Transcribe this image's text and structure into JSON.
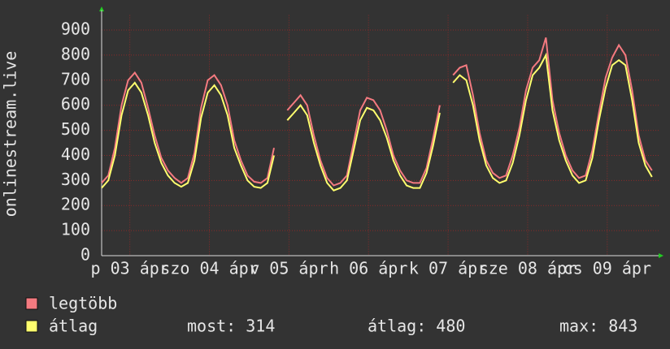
{
  "chart_data": {
    "type": "line",
    "ylabel": "onlinestream.live",
    "x": [
      0,
      2,
      4,
      6,
      8,
      10,
      12,
      14,
      16,
      18,
      20,
      22,
      24,
      26,
      28,
      30,
      32,
      34,
      36,
      38,
      40,
      42,
      44,
      46,
      48,
      50,
      52,
      54,
      56,
      58,
      60,
      62,
      64,
      66,
      68,
      70,
      72,
      74,
      76,
      78,
      80,
      82,
      84,
      86,
      88,
      90,
      92,
      94,
      96,
      98,
      100,
      102,
      104,
      106,
      108,
      110,
      112,
      114,
      116,
      118,
      120,
      122,
      124,
      126,
      128,
      130,
      132,
      134,
      136,
      138,
      140,
      142,
      144,
      146,
      148,
      150,
      152,
      154,
      156,
      158,
      160,
      162,
      164,
      166
    ],
    "xlim": [
      0,
      168
    ],
    "xticks": [
      {
        "value": 8.5,
        "label": "p 03 ápr"
      },
      {
        "value": 32.5,
        "label": "szo 04 ápr"
      },
      {
        "value": 56.5,
        "label": "v 05 ápr"
      },
      {
        "value": 80.5,
        "label": "h 06 ápr"
      },
      {
        "value": 104.5,
        "label": "k 07 ápr"
      },
      {
        "value": 128.5,
        "label": "sze 08 ápr"
      },
      {
        "value": 152.5,
        "label": "cs 09 ápr"
      }
    ],
    "ylim": [
      0,
      960
    ],
    "yticks": [
      0,
      100,
      200,
      300,
      400,
      500,
      600,
      700,
      800,
      900
    ],
    "grid": true,
    "series": [
      {
        "name": "legtöbb",
        "color": "#f47a80",
        "values": [
          290,
          320,
          430,
          600,
          700,
          730,
          690,
          590,
          480,
          390,
          340,
          310,
          290,
          310,
          410,
          590,
          700,
          720,
          680,
          600,
          460,
          380,
          320,
          295,
          290,
          310,
          430,
          null,
          580,
          610,
          640,
          600,
          480,
          380,
          310,
          280,
          290,
          320,
          450,
          580,
          630,
          620,
          580,
          500,
          400,
          340,
          300,
          290,
          290,
          350,
          470,
          600,
          null,
          720,
          750,
          760,
          640,
          490,
          380,
          330,
          310,
          320,
          400,
          510,
          660,
          750,
          780,
          870,
          620,
          490,
          400,
          340,
          310,
          320,
          420,
          570,
          710,
          790,
          840,
          800,
          660,
          480,
          380,
          340
        ]
      },
      {
        "name": "átlag",
        "color": "#ffff6e",
        "values": [
          270,
          300,
          400,
          560,
          660,
          690,
          650,
          560,
          450,
          370,
          320,
          290,
          275,
          290,
          380,
          550,
          650,
          680,
          640,
          560,
          430,
          360,
          300,
          275,
          270,
          290,
          400,
          null,
          540,
          570,
          600,
          560,
          450,
          360,
          290,
          260,
          270,
          300,
          420,
          540,
          590,
          580,
          540,
          470,
          380,
          320,
          280,
          270,
          270,
          330,
          440,
          570,
          null,
          690,
          720,
          700,
          600,
          460,
          360,
          310,
          290,
          300,
          370,
          480,
          620,
          720,
          750,
          800,
          580,
          460,
          380,
          320,
          290,
          300,
          390,
          540,
          670,
          760,
          780,
          760,
          620,
          450,
          360,
          314
        ]
      }
    ],
    "stats": [
      "most: 314",
      "átlag: 480",
      "max: 843"
    ]
  }
}
